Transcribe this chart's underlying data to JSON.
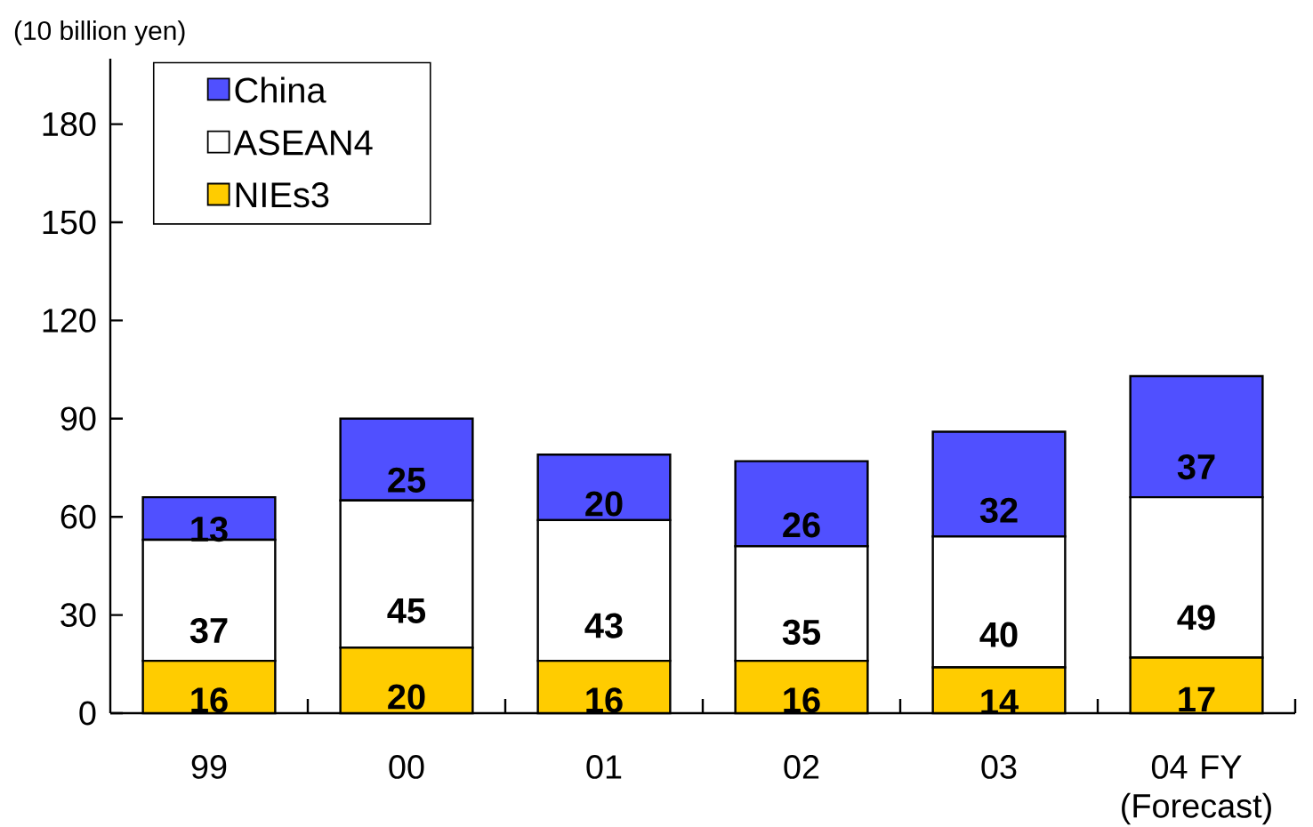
{
  "chart_data": {
    "type": "bar",
    "stacked": true,
    "ylabel": "(10 billion yen)",
    "categories": [
      "99",
      "00",
      "01",
      "02",
      "03",
      "04 FY (Forecast)"
    ],
    "series": [
      {
        "name": "NIEs3",
        "color": "#ffcc00",
        "values": [
          16,
          20,
          16,
          16,
          14,
          17
        ]
      },
      {
        "name": "ASEAN4",
        "color": "#ffffff",
        "values": [
          37,
          45,
          43,
          35,
          40,
          49
        ]
      },
      {
        "name": "China",
        "color": "#5050ff",
        "values": [
          13,
          25,
          20,
          26,
          32,
          37
        ]
      }
    ],
    "ylim": [
      0,
      200
    ],
    "yticks": [
      0,
      30,
      60,
      90,
      120,
      150,
      180
    ],
    "data_labels": true,
    "legend": "top left"
  }
}
